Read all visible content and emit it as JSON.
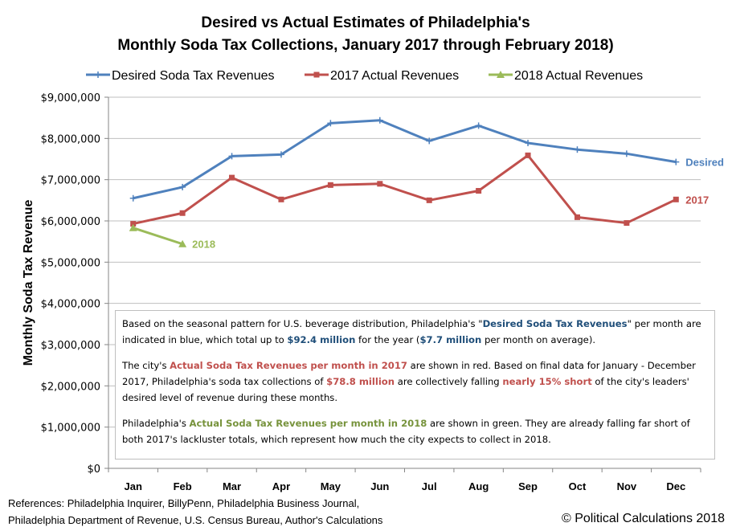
{
  "chart_data": {
    "type": "line",
    "title_lines": [
      "Desired vs Actual Estimates of Philadelphia's",
      "Monthly Soda Tax Collections, January 2017 through February 2018)"
    ],
    "xlabel": "",
    "ylabel": "Monthly Soda Tax Revenue",
    "categories": [
      "Jan",
      "Feb",
      "Mar",
      "Apr",
      "May",
      "Jun",
      "Jul",
      "Aug",
      "Sep",
      "Oct",
      "Nov",
      "Dec"
    ],
    "ylim": [
      0,
      9000000
    ],
    "yticks": [
      0,
      1000000,
      2000000,
      3000000,
      4000000,
      5000000,
      6000000,
      7000000,
      8000000,
      9000000
    ],
    "ytick_labels": [
      "$0",
      "$1,000,000",
      "$2,000,000",
      "$3,000,000",
      "$4,000,000",
      "$5,000,000",
      "$6,000,000",
      "$7,000,000",
      "$8,000,000",
      "$9,000,000"
    ],
    "grid": true,
    "legend_position": "top",
    "series": [
      {
        "name": "Desired Soda Tax Revenues",
        "color": "#4f81bd",
        "marker": "cross",
        "end_label": "Desired",
        "values": [
          6550000,
          6820000,
          7570000,
          7610000,
          8370000,
          8440000,
          7940000,
          8310000,
          7890000,
          7730000,
          7630000,
          7430000
        ]
      },
      {
        "name": "2017 Actual Revenues",
        "color": "#c0504d",
        "marker": "square",
        "end_label": "2017",
        "values": [
          5930000,
          6190000,
          7050000,
          6520000,
          6870000,
          6900000,
          6500000,
          6730000,
          7590000,
          6090000,
          5950000,
          6520000
        ]
      },
      {
        "name": "2018 Actual Revenues",
        "color": "#9bbb59",
        "marker": "triangle",
        "end_label": "2018",
        "values": [
          5830000,
          5440000,
          null,
          null,
          null,
          null,
          null,
          null,
          null,
          null,
          null,
          null
        ]
      }
    ]
  },
  "annotation": {
    "p1": {
      "t1": "Based on the seasonal pattern for U.S. beverage distribution,  Philadelphia's \"",
      "h1": "Desired Soda Tax Revenues",
      "t2": "\" per month  are indicated in blue, which total up to ",
      "h2": "$92.4 million",
      "t3": " for the year (",
      "h3": "$7.7 million",
      "t4": " per month  on average)."
    },
    "p2": {
      "t1": "The city's ",
      "h1": "Actual Soda Tax Revenues per month in 2017",
      "t2": " are shown in red.   Based on final data for January - December 2017, Philadelphia's soda tax collections of ",
      "h2": "$78.8 million",
      "t3": " are collectively falling ",
      "h3": "nearly 15% short",
      "t4": " of the city's leaders' desired level of revenue during these months."
    },
    "p3": {
      "t1": "Philadelphia's ",
      "h1": "Actual Soda Tax Revenues per month in 2018",
      "t2": " are shown in green.  They are already falling far short of both 2017's lackluster totals, which represent how much the city expects to collect in 2018."
    }
  },
  "footer": {
    "references_line1": "References: Philadelphia Inquirer, BillyPenn, Philadelphia Business Journal,",
    "references_line2": "Philadelphia Department of Revenue, U.S. Census Bureau, Author's Calculations",
    "copyright": "© Political Calculations 2018"
  },
  "colors": {
    "blue_text": "#1f4e79",
    "red_text": "#c0504d",
    "green_text": "#77933c",
    "grid": "#bfbfbf"
  }
}
